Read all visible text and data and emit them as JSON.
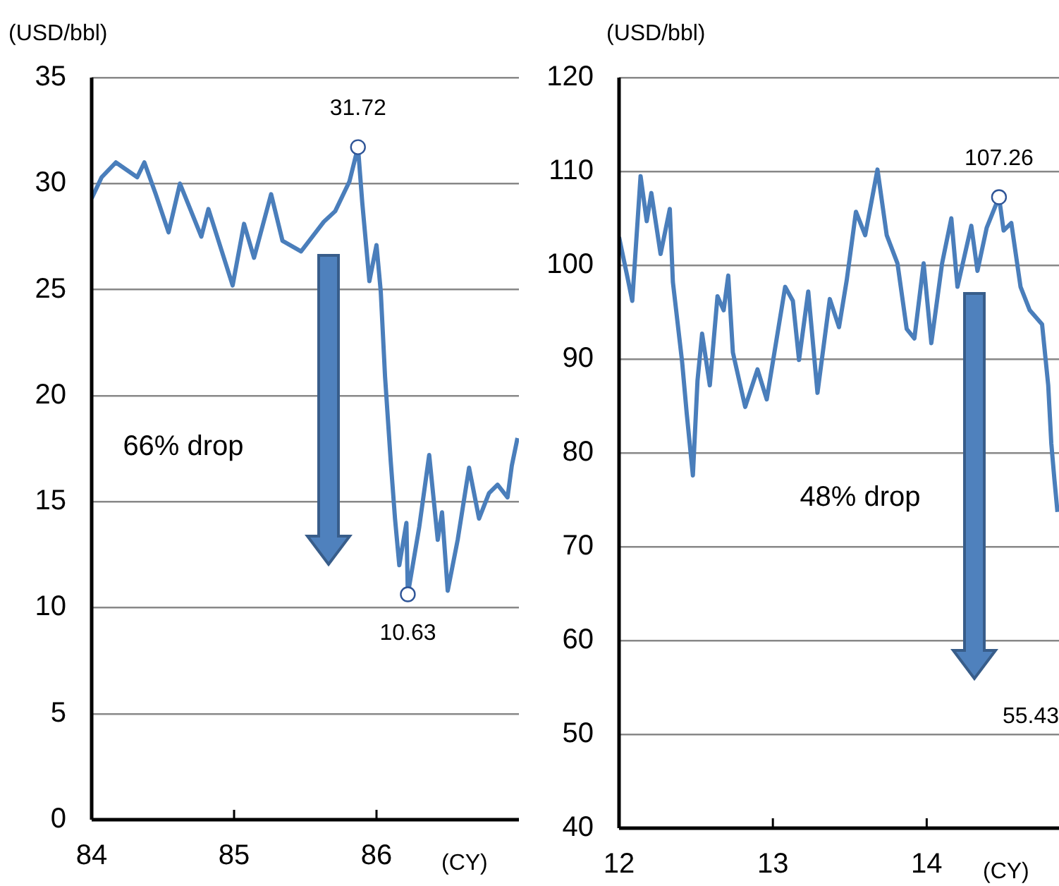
{
  "chart_data": [
    {
      "type": "line",
      "ylabel": "(USD/bbl)",
      "xlabel": "(CY)",
      "xlim": [
        84,
        87
      ],
      "xticks": [
        84,
        85,
        86
      ],
      "ylim": [
        0,
        35
      ],
      "yticks": [
        0,
        5,
        10,
        15,
        20,
        25,
        30,
        35
      ],
      "grid": "y",
      "legend": false,
      "line_style": "solid",
      "series": [
        {
          "color": "#4a7ebb",
          "x": [
            84.0,
            84.07,
            84.17,
            84.32,
            84.37,
            84.45,
            84.54,
            84.62,
            84.77,
            84.82,
            84.99,
            85.07,
            85.14,
            85.26,
            85.34,
            85.47,
            85.63,
            85.71,
            85.81,
            85.87,
            85.9,
            85.95,
            86.0,
            86.03,
            86.06,
            86.1,
            86.13,
            86.16,
            86.21,
            86.22,
            86.3,
            86.37,
            86.43,
            86.46,
            86.5,
            86.57,
            86.65,
            86.72,
            86.79,
            86.85,
            86.92,
            86.95,
            86.99
          ],
          "values": [
            29.3,
            30.3,
            31.0,
            30.3,
            31.0,
            29.5,
            27.7,
            30.0,
            27.5,
            28.8,
            25.2,
            28.1,
            26.5,
            29.5,
            27.3,
            26.8,
            28.2,
            28.7,
            30.1,
            31.72,
            29.1,
            25.4,
            27.1,
            24.9,
            20.9,
            16.9,
            14.2,
            12.0,
            14.0,
            10.63,
            13.8,
            17.2,
            13.2,
            14.5,
            10.8,
            13.2,
            16.6,
            14.2,
            15.4,
            15.8,
            15.2,
            16.7,
            18.0
          ]
        }
      ],
      "annotations": [
        {
          "text": "31.72",
          "x": 85.87,
          "y": 31.72
        },
        {
          "text": "10.63",
          "x": 86.22,
          "y": 10.63
        },
        "66% drop"
      ]
    },
    {
      "type": "line",
      "ylabel": "(USD/bbl)",
      "xlabel": "(CY)",
      "xlim": [
        12,
        14.86
      ],
      "xticks": [
        12,
        13,
        14
      ],
      "ylim": [
        40,
        120
      ],
      "yticks": [
        40,
        50,
        60,
        70,
        80,
        90,
        100,
        110,
        120
      ],
      "grid": "y",
      "legend": false,
      "line_style": "solid",
      "series": [
        {
          "color": "#4a7ebb",
          "x": [
            12.0,
            12.055,
            12.086,
            12.14,
            12.18,
            12.21,
            12.27,
            12.33,
            12.35,
            12.41,
            12.44,
            12.48,
            12.51,
            12.54,
            12.59,
            12.64,
            12.68,
            12.71,
            12.74,
            12.82,
            12.9,
            12.96,
            13.08,
            13.13,
            13.17,
            13.23,
            13.29,
            13.37,
            13.43,
            13.48,
            13.54,
            13.6,
            13.68,
            13.74,
            13.81,
            13.87,
            13.92,
            13.98,
            14.03,
            14.1,
            14.16,
            14.2,
            14.29,
            14.33,
            14.39,
            14.47,
            14.5,
            14.55,
            14.61,
            14.67,
            14.75,
            14.79,
            14.81,
            14.83,
            14.85
          ],
          "values": [
            103.0,
            98.7,
            96.2,
            109.5,
            104.7,
            107.7,
            101.2,
            106.0,
            98.2,
            89.7,
            84.2,
            77.6,
            87.7,
            92.7,
            87.2,
            96.7,
            95.2,
            98.9,
            90.7,
            84.9,
            88.9,
            85.7,
            97.7,
            96.2,
            89.9,
            97.2,
            86.4,
            96.4,
            93.4,
            98.4,
            105.7,
            103.2,
            110.2,
            103.2,
            100.2,
            93.2,
            92.2,
            100.2,
            91.7,
            100.2,
            105.0,
            97.7,
            104.2,
            99.4,
            104.0,
            107.26,
            103.7,
            104.5,
            97.7,
            95.2,
            93.7,
            87.2,
            81.0,
            77.2,
            73.7
          ]
        }
      ],
      "annotations": [
        {
          "text": "107.26",
          "x": 14.47,
          "y": 107.26
        },
        "48% drop",
        "55.43"
      ]
    }
  ]
}
